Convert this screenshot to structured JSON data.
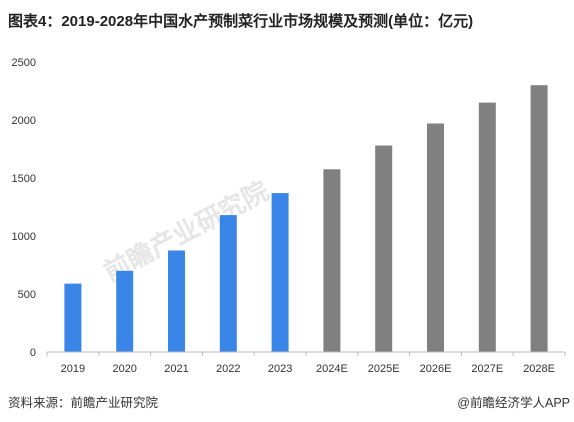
{
  "title": "图表4：2019-2028年中国水产预制菜行业市场规模及预测(单位：亿元)",
  "source": "资料来源：前瞻产业研究院",
  "credit": "@前瞻经济学人APP",
  "watermark": "前瞻产业研究院",
  "colors": {
    "actual": "#3a86e8",
    "forecast": "#808080",
    "axis": "#bbbbbb",
    "text": "#333333"
  },
  "chart_data": {
    "type": "bar",
    "categories": [
      "2019",
      "2020",
      "2021",
      "2022",
      "2023",
      "2024E",
      "2025E",
      "2026E",
      "2027E",
      "2028E"
    ],
    "values": [
      590,
      700,
      875,
      1180,
      1370,
      1575,
      1780,
      1970,
      2150,
      2300
    ],
    "forecast_from_index": 5,
    "yticks": [
      0,
      500,
      1000,
      1500,
      2000,
      2500
    ],
    "ylim": [
      0,
      2500
    ],
    "grid": false
  }
}
